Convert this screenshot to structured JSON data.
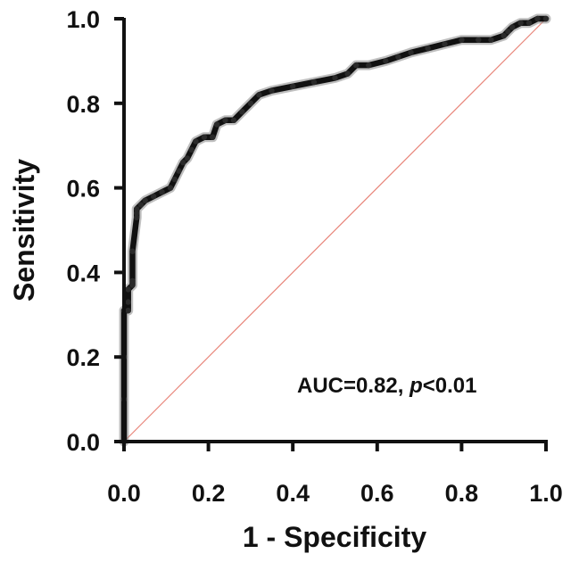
{
  "chart_data": {
    "type": "line",
    "title": "",
    "xlabel": "1 - Specificity",
    "ylabel": "Sensitivity",
    "xlim": [
      0,
      1
    ],
    "ylim": [
      0,
      1
    ],
    "xticks": [
      "0.0",
      "0.2",
      "0.4",
      "0.6",
      "0.8",
      "1.0"
    ],
    "yticks": [
      "0.0",
      "0.2",
      "0.4",
      "0.6",
      "0.8",
      "1.0"
    ],
    "grid": false,
    "annotation": {
      "prefix": "AUC=0.82, ",
      "p_symbol": "p",
      "suffix": "<0.01"
    },
    "series": [
      {
        "style": "roc-curve",
        "color": "#111111",
        "x": [
          0.0,
          0.0,
          0.0,
          0.0,
          0.01,
          0.01,
          0.01,
          0.02,
          0.02,
          0.02,
          0.02,
          0.03,
          0.03,
          0.03,
          0.04,
          0.05,
          0.07,
          0.09,
          0.11,
          0.12,
          0.13,
          0.14,
          0.15,
          0.16,
          0.17,
          0.19,
          0.21,
          0.22,
          0.24,
          0.26,
          0.28,
          0.3,
          0.32,
          0.35,
          0.4,
          0.45,
          0.5,
          0.53,
          0.55,
          0.58,
          0.62,
          0.65,
          0.68,
          0.72,
          0.76,
          0.8,
          0.84,
          0.87,
          0.9,
          0.91,
          0.92,
          0.94,
          0.96,
          0.98,
          1.0
        ],
        "y": [
          0.0,
          0.1,
          0.2,
          0.31,
          0.31,
          0.33,
          0.36,
          0.37,
          0.38,
          0.38,
          0.45,
          0.53,
          0.54,
          0.55,
          0.56,
          0.57,
          0.58,
          0.59,
          0.6,
          0.62,
          0.64,
          0.66,
          0.67,
          0.69,
          0.71,
          0.72,
          0.72,
          0.75,
          0.76,
          0.76,
          0.78,
          0.8,
          0.82,
          0.83,
          0.84,
          0.85,
          0.86,
          0.87,
          0.89,
          0.89,
          0.9,
          0.91,
          0.92,
          0.93,
          0.94,
          0.95,
          0.95,
          0.95,
          0.96,
          0.97,
          0.98,
          0.99,
          0.99,
          1.0,
          1.0
        ]
      },
      {
        "style": "reference-line",
        "color": "#e8857a",
        "x": [
          0,
          1
        ],
        "y": [
          0,
          1
        ]
      }
    ]
  }
}
